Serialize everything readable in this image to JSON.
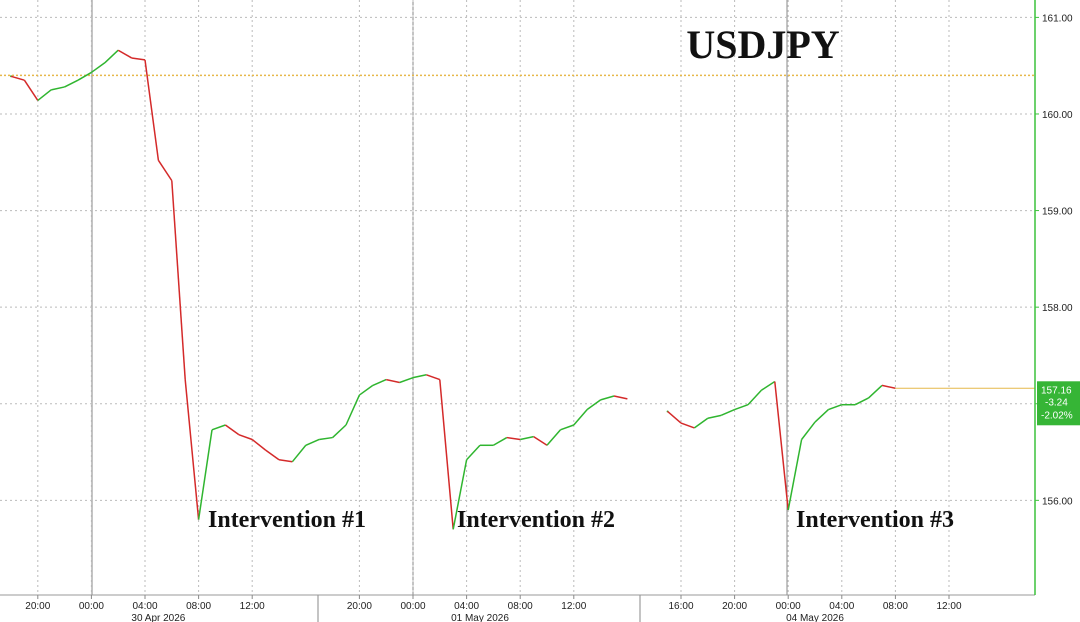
{
  "chart_data": {
    "type": "line",
    "title": "USDJPY",
    "categories": [
      null,
      null,
      "20:00",
      null,
      null,
      null,
      "00:00",
      null,
      null,
      null,
      "04:00",
      null,
      null,
      null,
      "08:00",
      null,
      null,
      null,
      "12:00",
      null,
      null,
      null,
      null,
      null,
      null,
      null,
      "20:00",
      null,
      null,
      null,
      "00:00",
      null,
      null,
      null,
      "04:00",
      null,
      null,
      null,
      "08:00",
      null,
      null,
      null,
      "12:00",
      null,
      null,
      null,
      null,
      null,
      null,
      null,
      "16:00",
      null,
      null,
      null,
      "20:00",
      null,
      null,
      null,
      "00:00",
      null,
      null,
      null,
      "04:00",
      null,
      null,
      null,
      "08:00",
      null,
      null,
      null,
      "12:00",
      null,
      null,
      null,
      null,
      null,
      null
    ],
    "date_labels": [
      null,
      null,
      null,
      null,
      null,
      null,
      null,
      null,
      null,
      null,
      null,
      "30 Apr 2026",
      null,
      null,
      null,
      null,
      null,
      null,
      null,
      null,
      null,
      null,
      null,
      null,
      null,
      null,
      null,
      null,
      null,
      null,
      null,
      null,
      null,
      null,
      null,
      "01 May 2026",
      null,
      null,
      null,
      null,
      null,
      null,
      null,
      null,
      null,
      null,
      null,
      null,
      null,
      null,
      null,
      null,
      null,
      null,
      null,
      null,
      null,
      null,
      null,
      null,
      "04 May 2026",
      null,
      null,
      null,
      null,
      null,
      null,
      null,
      null,
      null,
      null,
      null,
      null,
      null,
      null,
      null,
      null
    ],
    "values": [
      160.39,
      160.35,
      160.14,
      160.25,
      160.28,
      160.35,
      160.43,
      160.53,
      160.66,
      160.58,
      160.56,
      159.52,
      159.31,
      157.25,
      155.8,
      156.73,
      156.78,
      156.68,
      156.63,
      156.52,
      156.42,
      156.4,
      156.57,
      156.63,
      156.65,
      156.78,
      157.09,
      157.19,
      157.25,
      157.22,
      157.27,
      157.3,
      157.25,
      155.7,
      156.42,
      156.57,
      156.57,
      156.65,
      156.63,
      156.66,
      156.57,
      156.73,
      156.78,
      156.94,
      157.04,
      157.08,
      157.05,
      null,
      null,
      156.92,
      156.8,
      156.75,
      156.85,
      156.88,
      156.94,
      156.99,
      157.14,
      157.23,
      155.9,
      156.63,
      156.81,
      156.94,
      156.99,
      156.99,
      157.06,
      157.19,
      157.16,
      null,
      null,
      null,
      null,
      null,
      null,
      null,
      null,
      null,
      null
    ],
    "up_color": "#2fb52f",
    "down_color": "#d42a2a",
    "ylim": [
      155.02,
      161.18
    ],
    "yticks": [
      {
        "value": 156,
        "label": "156.00"
      },
      {
        "value": 157,
        "label": "157.00"
      },
      {
        "value": 158,
        "label": "158.00"
      },
      {
        "value": 159,
        "label": "159.00"
      },
      {
        "value": 160,
        "label": "160.00"
      },
      {
        "value": 161,
        "label": "161.00"
      }
    ],
    "grid": true,
    "reference_line": 160.4,
    "reference_color": "#e6b84a",
    "axis_color": "#3cc23c",
    "last_price": {
      "price": "157.16",
      "change": "-3.24",
      "percent": "-2.02%"
    },
    "annotations": [
      "Intervention #1",
      "Intervention #2",
      "Intervention #3"
    ]
  }
}
